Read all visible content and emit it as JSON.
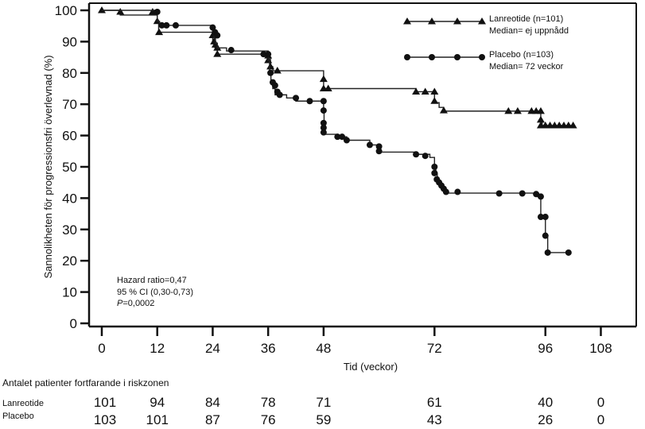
{
  "chart_data": {
    "type": "line",
    "subtype": "kaplan-meier-step",
    "xlabel": "Tid (veckor)",
    "ylabel": "Sannolikheten för progressionsfri överlevnad (%)",
    "xlim": [
      0,
      118
    ],
    "ylim": [
      0,
      100
    ],
    "xticks": [
      0,
      12,
      24,
      36,
      48,
      72,
      96,
      108
    ],
    "yticks": [
      0,
      10,
      20,
      30,
      40,
      50,
      60,
      70,
      80,
      90,
      100
    ],
    "legend_placement": "top-right",
    "series": [
      {
        "name": "Lanreotide (n=101)",
        "median_label": "Median= ej uppnådd",
        "marker": "triangle",
        "steps": [
          [
            0,
            100
          ],
          [
            4,
            98.5
          ],
          [
            12,
            96
          ],
          [
            12.3,
            93
          ],
          [
            24,
            90
          ],
          [
            24.5,
            88
          ],
          [
            25,
            86
          ],
          [
            36,
            85
          ],
          [
            36.5,
            82
          ],
          [
            37,
            80.7
          ],
          [
            48,
            75
          ],
          [
            68,
            74
          ],
          [
            72,
            70.5
          ],
          [
            73,
            69
          ],
          [
            74,
            67.8
          ],
          [
            95,
            65
          ],
          [
            95.3,
            63.2
          ]
        ],
        "censored": [
          [
            0,
            100
          ],
          [
            4,
            99.5
          ],
          [
            11,
            99.5
          ],
          [
            12,
            96.5
          ],
          [
            12.4,
            93
          ],
          [
            24,
            92
          ],
          [
            24.3,
            90
          ],
          [
            24.6,
            89
          ],
          [
            25,
            88
          ],
          [
            25,
            86
          ],
          [
            36,
            85.5
          ],
          [
            36,
            84
          ],
          [
            36.5,
            82
          ],
          [
            38,
            80.7
          ],
          [
            48,
            78
          ],
          [
            48,
            75
          ],
          [
            49,
            75
          ],
          [
            68,
            74
          ],
          [
            70,
            74
          ],
          [
            72,
            74
          ],
          [
            72,
            71
          ],
          [
            74,
            68
          ],
          [
            88,
            67.8
          ],
          [
            90,
            67.8
          ],
          [
            93,
            67.8
          ],
          [
            94,
            67.8
          ],
          [
            95,
            67.8
          ],
          [
            95,
            65
          ],
          [
            95,
            63.2
          ],
          [
            96,
            63.2
          ],
          [
            97,
            63.2
          ],
          [
            98,
            63.2
          ],
          [
            99,
            63.2
          ],
          [
            100,
            63.2
          ],
          [
            101,
            63.2
          ],
          [
            102,
            63.2
          ]
        ],
        "at_risk": [
          101,
          94,
          84,
          78,
          71,
          61,
          40,
          0
        ]
      },
      {
        "name": "Placebo (n=103)",
        "median_label": "Median= 72 veckor",
        "marker": "circle",
        "steps": [
          [
            0,
            100
          ],
          [
            12,
            96.5
          ],
          [
            12.5,
            95.2
          ],
          [
            24,
            93
          ],
          [
            24.3,
            91
          ],
          [
            24.6,
            89.5
          ],
          [
            25,
            88
          ],
          [
            27,
            87
          ],
          [
            36,
            84
          ],
          [
            36.3,
            80
          ],
          [
            36.6,
            77
          ],
          [
            37,
            75
          ],
          [
            37.5,
            73
          ],
          [
            40,
            72
          ],
          [
            42,
            71
          ],
          [
            48,
            68
          ],
          [
            48.1,
            64
          ],
          [
            48.2,
            62
          ],
          [
            48.3,
            60.4
          ],
          [
            51,
            59.6
          ],
          [
            53,
            58.5
          ],
          [
            58,
            57
          ],
          [
            60,
            54.7
          ],
          [
            68,
            54
          ],
          [
            71,
            53
          ],
          [
            72,
            50
          ],
          [
            72.3,
            48
          ],
          [
            72.6,
            46
          ],
          [
            73,
            45
          ],
          [
            73.5,
            44
          ],
          [
            74,
            43
          ],
          [
            74.5,
            41.6
          ],
          [
            94,
            40.5
          ],
          [
            95,
            34
          ],
          [
            96,
            28
          ],
          [
            96.5,
            22.6
          ]
        ],
        "censored": [
          [
            12,
            99.5
          ],
          [
            13,
            95.2
          ],
          [
            14,
            95.2
          ],
          [
            16,
            95.2
          ],
          [
            24,
            94.5
          ],
          [
            24.5,
            93
          ],
          [
            25,
            92
          ],
          [
            28,
            87.3
          ],
          [
            35,
            86
          ],
          [
            36,
            86
          ],
          [
            36.5,
            80
          ],
          [
            37,
            77
          ],
          [
            37.5,
            76
          ],
          [
            38,
            74
          ],
          [
            38.5,
            73
          ],
          [
            42,
            72
          ],
          [
            45,
            71
          ],
          [
            48,
            71
          ],
          [
            48,
            68
          ],
          [
            48,
            64
          ],
          [
            48,
            62.5
          ],
          [
            48,
            61
          ],
          [
            51,
            59.6
          ],
          [
            52,
            59.6
          ],
          [
            53,
            58.5
          ],
          [
            58,
            57
          ],
          [
            60,
            56.5
          ],
          [
            60,
            55
          ],
          [
            68,
            54
          ],
          [
            70,
            53.5
          ],
          [
            72,
            50
          ],
          [
            72,
            48
          ],
          [
            72.5,
            46
          ],
          [
            73,
            45
          ],
          [
            73.5,
            44
          ],
          [
            74,
            43
          ],
          [
            74.5,
            42
          ],
          [
            77,
            42
          ],
          [
            86,
            41.5
          ],
          [
            91,
            41.5
          ],
          [
            94,
            41.3
          ],
          [
            95,
            40.5
          ],
          [
            95,
            34
          ],
          [
            96,
            34
          ],
          [
            96,
            28
          ],
          [
            96.5,
            22.6
          ],
          [
            101,
            22.6
          ]
        ],
        "at_risk": [
          103,
          101,
          87,
          76,
          59,
          43,
          26,
          0
        ]
      }
    ],
    "annotations": {
      "hazard_ratio": "Hazard ratio=0,47",
      "ci": "95 % CI (0,30-0,73)",
      "p_label": "P",
      "p_value": "=0,0002"
    },
    "risk_table": {
      "title": "Antalet patienter fortfarande i riskzonen",
      "row_labels": [
        "Lanreotide",
        "Placebo"
      ],
      "times": [
        0,
        12,
        24,
        36,
        48,
        72,
        96,
        108
      ]
    }
  }
}
